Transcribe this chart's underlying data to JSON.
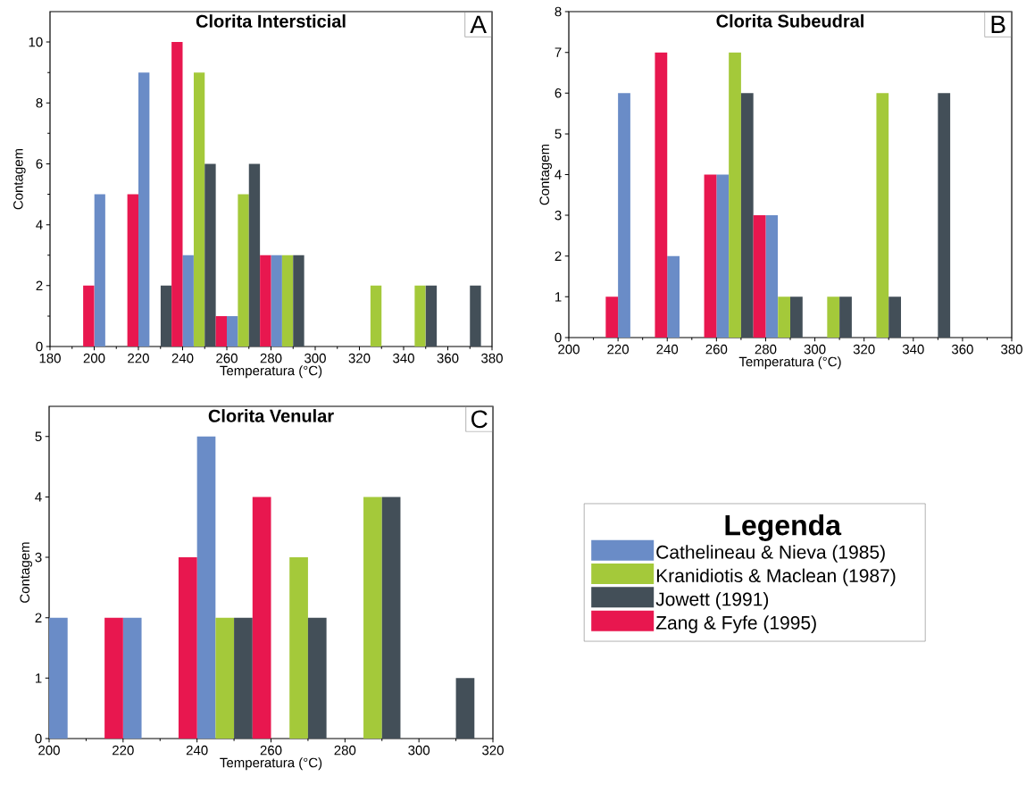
{
  "chart_data": [
    {
      "type": "bar",
      "title": "Clorita Intersticial",
      "xlabel": "Temperatura (°C)",
      "ylabel": "Contagem",
      "annotations": [
        "A"
      ],
      "xlim": [
        180,
        380
      ],
      "xticks": [
        180,
        200,
        220,
        240,
        260,
        280,
        300,
        320,
        340,
        360,
        380
      ],
      "ylim": [
        0,
        11
      ],
      "yticks": [
        0,
        2,
        4,
        6,
        8,
        10
      ],
      "series": [
        {
          "color": "#6a8cc7",
          "x": [
            202.5,
            222.5,
            242.5,
            262.5,
            282.5
          ],
          "values": [
            5,
            9,
            3,
            1,
            3
          ]
        },
        {
          "color": "#a4c93a",
          "x": [
            247.5,
            267.5,
            287.5,
            327.5,
            347.5
          ],
          "values": [
            9,
            5,
            3,
            2,
            2
          ]
        },
        {
          "color": "#434f58",
          "x": [
            232.5,
            252.5,
            272.5,
            292.5,
            352.5,
            372.5
          ],
          "values": [
            2,
            6,
            6,
            3,
            2,
            2
          ]
        },
        {
          "color": "#e8174f",
          "x": [
            197.5,
            217.5,
            237.5,
            257.5,
            277.5
          ],
          "values": [
            2,
            5,
            10,
            1,
            3
          ]
        }
      ]
    },
    {
      "type": "bar",
      "title": "Clorita Subeudral",
      "xlabel": "Temperatura (°C)",
      "ylabel": "Contagem",
      "annotations": [
        "B"
      ],
      "xlim": [
        200,
        380
      ],
      "xticks": [
        200,
        220,
        240,
        260,
        280,
        300,
        320,
        340,
        360,
        380
      ],
      "ylim": [
        0,
        8
      ],
      "yticks": [
        0,
        1,
        2,
        3,
        4,
        5,
        6,
        7,
        8
      ],
      "series": [
        {
          "color": "#6a8cc7",
          "x": [
            222.5,
            242.5,
            262.5,
            282.5
          ],
          "values": [
            6,
            2,
            4,
            3
          ]
        },
        {
          "color": "#a4c93a",
          "x": [
            267.5,
            287.5,
            307.5,
            327.5
          ],
          "values": [
            7,
            1,
            1,
            6
          ]
        },
        {
          "color": "#434f58",
          "x": [
            272.5,
            292.5,
            312.5,
            332.5,
            352.5
          ],
          "values": [
            6,
            1,
            1,
            1,
            6
          ]
        },
        {
          "color": "#e8174f",
          "x": [
            217.5,
            237.5,
            257.5,
            277.5
          ],
          "values": [
            1,
            7,
            4,
            3
          ]
        }
      ]
    },
    {
      "type": "bar",
      "title": "Clorita Venular",
      "xlabel": "Temperatura (°C)",
      "ylabel": "Contagem",
      "annotations": [
        "C"
      ],
      "xlim": [
        200,
        320
      ],
      "xticks": [
        200,
        220,
        240,
        260,
        280,
        300,
        320
      ],
      "ylim": [
        0,
        5.5
      ],
      "yticks": [
        0,
        1,
        2,
        3,
        4,
        5
      ],
      "legend": "right",
      "legend_title": "Legenda",
      "series": [
        {
          "name": "Cathelineau & Nieva (1985)",
          "color": "#6a8cc7",
          "x": [
            202.5,
            222.5,
            242.5
          ],
          "values": [
            2,
            2,
            5
          ]
        },
        {
          "name": "Kranidiotis & Maclean (1987)",
          "color": "#a4c93a",
          "x": [
            247.5,
            267.5,
            287.5
          ],
          "values": [
            2,
            3,
            4
          ]
        },
        {
          "name": "Jowett (1991)",
          "color": "#434f58",
          "x": [
            252.5,
            272.5,
            292.5,
            312.5
          ],
          "values": [
            2,
            2,
            4,
            1
          ]
        },
        {
          "name": "Zang & Fyfe (1995)",
          "color": "#e8174f",
          "x": [
            217.5,
            237.5,
            257.5
          ],
          "values": [
            2,
            3,
            4
          ]
        }
      ]
    }
  ]
}
